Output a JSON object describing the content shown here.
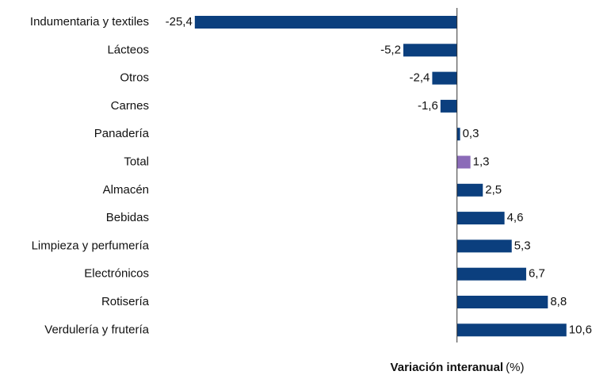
{
  "chart_data": {
    "type": "barh",
    "categories": [
      "Indumentaria y textiles",
      "Lácteos",
      "Otros",
      "Carnes",
      "Panadería",
      "Total",
      "Almacén",
      "Bebidas",
      "Limpieza y perfumería",
      "Electrónicos",
      "Rotisería",
      "Verdulería y frutería"
    ],
    "values": [
      -25.4,
      -5.2,
      -2.4,
      -1.6,
      0.3,
      1.3,
      2.5,
      4.6,
      5.3,
      6.7,
      8.8,
      10.6
    ],
    "value_labels": [
      "-25,4",
      "-5,2",
      "-2,4",
      "-1,6",
      "0,3",
      "1,3",
      "2,5",
      "4,6",
      "5,3",
      "6,7",
      "8,8",
      "10,6"
    ],
    "colors": [
      "#0b3f7e",
      "#0b3f7e",
      "#0b3f7e",
      "#0b3f7e",
      "#0b3f7e",
      "#8b6bb8",
      "#0b3f7e",
      "#0b3f7e",
      "#0b3f7e",
      "#0b3f7e",
      "#0b3f7e",
      "#0b3f7e"
    ],
    "xlim": [
      -26,
      12
    ],
    "x_label": "Variación interanual",
    "x_label_unit": "(%)"
  }
}
